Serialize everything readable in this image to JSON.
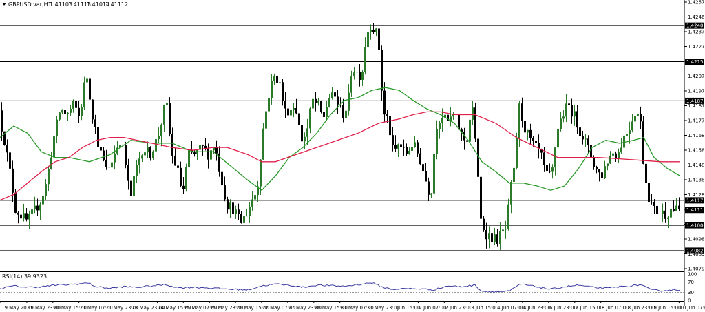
{
  "chart_data": {
    "type": "candlestick",
    "header": {
      "symbol_label": "GBPUSD.var,H1",
      "ohlc": [
        "1.41103",
        "1.41113",
        "1.41014",
        "1.41112"
      ]
    },
    "price_axis": {
      "min": 1.407,
      "max": 1.4257,
      "ticks": [
        "1.42570",
        "1.42465",
        "1.42370",
        "1.42270",
        "1.42170",
        "1.42075",
        "1.41975",
        "1.41875",
        "1.41775",
        "1.41680",
        "1.41580",
        "1.41480",
        "1.41380",
        "1.41280",
        "1.41185",
        "1.41085",
        "1.40985",
        "1.40890",
        "1.40790"
      ]
    },
    "levels": [
      {
        "value": 1.42405,
        "label": "1.42405"
      },
      {
        "value": 1.42152,
        "label": "1.42152"
      },
      {
        "value": 1.41877,
        "label": "1.41877"
      },
      {
        "value": 1.41179,
        "label": "1.41179"
      },
      {
        "value": 1.41004,
        "label": "1.41004"
      },
      {
        "value": 1.40826,
        "label": "1.40826"
      }
    ],
    "current_price": {
      "value": 1.41112,
      "label": "1.41112"
    },
    "time_axis": {
      "labels": [
        "19 May 2021",
        "19 May 23:00",
        "20 May 15:00",
        "21 May 07:00",
        "21 May 23:00",
        "23 May 23:00",
        "24 May 15:00",
        "25 May 07:00",
        "25 May 23:00",
        "26 May 15:00",
        "27 May 07:00",
        "27 May 23:00",
        "28 May 15:00",
        "31 May 07:00",
        "31 May 23:00",
        "1 Jun 15:00",
        "2 Jun 07:00",
        "2 Jun 23:00",
        "3 Jun 15:00",
        "4 Jun 07:00",
        "4 Jun 23:00",
        "6 Jun 23:00",
        "7 Jun 15:00",
        "8 Jun 07:00",
        "8 Jun 23:00",
        "9 Jun 15:00",
        "10 Jun 07:00"
      ]
    },
    "price_path": [
      [
        0,
        1.4181
      ],
      [
        10,
        1.4158
      ],
      [
        18,
        1.4135
      ],
      [
        25,
        1.4112
      ],
      [
        32,
        1.4108
      ],
      [
        42,
        1.4103
      ],
      [
        52,
        1.411
      ],
      [
        62,
        1.4118
      ],
      [
        70,
        1.413
      ],
      [
        80,
        1.416
      ],
      [
        90,
        1.4182
      ],
      [
        100,
        1.4178
      ],
      [
        110,
        1.4185
      ],
      [
        118,
        1.4176
      ],
      [
        128,
        1.4208
      ],
      [
        138,
        1.4175
      ],
      [
        148,
        1.4152
      ],
      [
        158,
        1.4138
      ],
      [
        168,
        1.415
      ],
      [
        178,
        1.4162
      ],
      [
        186,
        1.414
      ],
      [
        192,
        1.4118
      ],
      [
        200,
        1.414
      ],
      [
        210,
        1.4155
      ],
      [
        220,
        1.415
      ],
      [
        232,
        1.4162
      ],
      [
        244,
        1.4188
      ],
      [
        252,
        1.415
      ],
      [
        260,
        1.414
      ],
      [
        268,
        1.4122
      ],
      [
        276,
        1.415
      ],
      [
        286,
        1.415
      ],
      [
        296,
        1.4155
      ],
      [
        306,
        1.415
      ],
      [
        314,
        1.4158
      ],
      [
        322,
        1.4138
      ],
      [
        332,
        1.4115
      ],
      [
        342,
        1.4112
      ],
      [
        352,
        1.4102
      ],
      [
        360,
        1.4108
      ],
      [
        368,
        1.4118
      ],
      [
        376,
        1.4125
      ],
      [
        384,
        1.4165
      ],
      [
        392,
        1.419
      ],
      [
        400,
        1.4205
      ],
      [
        408,
        1.4202
      ],
      [
        416,
        1.418
      ],
      [
        424,
        1.4182
      ],
      [
        432,
        1.4185
      ],
      [
        440,
        1.416
      ],
      [
        448,
        1.4165
      ],
      [
        456,
        1.4188
      ],
      [
        464,
        1.4185
      ],
      [
        472,
        1.4175
      ],
      [
        480,
        1.419
      ],
      [
        490,
        1.419
      ],
      [
        500,
        1.4178
      ],
      [
        508,
        1.4185
      ],
      [
        514,
        1.4212
      ],
      [
        520,
        1.4208
      ],
      [
        528,
        1.4205
      ],
      [
        534,
        1.4232
      ],
      [
        540,
        1.4242
      ],
      [
        546,
        1.4238
      ],
      [
        552,
        1.4232
      ],
      [
        556,
        1.4202
      ],
      [
        560,
        1.4178
      ],
      [
        566,
        1.4175
      ],
      [
        574,
        1.415
      ],
      [
        582,
        1.4158
      ],
      [
        592,
        1.415
      ],
      [
        602,
        1.4158
      ],
      [
        612,
        1.4148
      ],
      [
        622,
        1.413
      ],
      [
        628,
        1.412
      ],
      [
        636,
        1.417
      ],
      [
        644,
        1.4178
      ],
      [
        652,
        1.4172
      ],
      [
        662,
        1.4178
      ],
      [
        672,
        1.4165
      ],
      [
        680,
        1.4158
      ],
      [
        688,
        1.4185
      ],
      [
        694,
        1.4158
      ],
      [
        700,
        1.4105
      ],
      [
        708,
        1.4095
      ],
      [
        716,
        1.4092
      ],
      [
        724,
        1.409
      ],
      [
        732,
        1.4095
      ],
      [
        738,
        1.4098
      ],
      [
        744,
        1.4125
      ],
      [
        750,
        1.414
      ],
      [
        756,
        1.4185
      ],
      [
        764,
        1.417
      ],
      [
        772,
        1.416
      ],
      [
        780,
        1.4155
      ],
      [
        788,
        1.415
      ],
      [
        796,
        1.4135
      ],
      [
        804,
        1.4135
      ],
      [
        812,
        1.4168
      ],
      [
        820,
        1.4178
      ],
      [
        828,
        1.4185
      ],
      [
        836,
        1.4178
      ],
      [
        844,
        1.4168
      ],
      [
        852,
        1.416
      ],
      [
        860,
        1.415
      ],
      [
        868,
        1.414
      ],
      [
        876,
        1.4135
      ],
      [
        884,
        1.4145
      ],
      [
        892,
        1.4152
      ],
      [
        900,
        1.415
      ],
      [
        908,
        1.4162
      ],
      [
        916,
        1.4168
      ],
      [
        924,
        1.418
      ],
      [
        932,
        1.4178
      ],
      [
        938,
        1.414
      ],
      [
        946,
        1.4118
      ],
      [
        954,
        1.411
      ],
      [
        962,
        1.411
      ],
      [
        970,
        1.4108
      ],
      [
        978,
        1.4112
      ],
      [
        985,
        1.4111
      ]
    ],
    "moving_averages": [
      {
        "color": "#2a9a2a",
        "points": [
          [
            0,
            1.4162
          ],
          [
            20,
            1.417
          ],
          [
            40,
            1.4165
          ],
          [
            60,
            1.4152
          ],
          [
            80,
            1.4148
          ],
          [
            100,
            1.4148
          ],
          [
            130,
            1.4145
          ],
          [
            160,
            1.415
          ],
          [
            190,
            1.416
          ],
          [
            220,
            1.4158
          ],
          [
            250,
            1.4158
          ],
          [
            280,
            1.4152
          ],
          [
            310,
            1.4152
          ],
          [
            340,
            1.414
          ],
          [
            360,
            1.4132
          ],
          [
            380,
            1.4125
          ],
          [
            400,
            1.4135
          ],
          [
            420,
            1.4148
          ],
          [
            440,
            1.4155
          ],
          [
            460,
            1.4165
          ],
          [
            480,
            1.4178
          ],
          [
            500,
            1.4188
          ],
          [
            520,
            1.419
          ],
          [
            540,
            1.4195
          ],
          [
            560,
            1.4197
          ],
          [
            580,
            1.4195
          ],
          [
            600,
            1.4188
          ],
          [
            620,
            1.4182
          ],
          [
            640,
            1.4178
          ],
          [
            660,
            1.4172
          ],
          [
            680,
            1.416
          ],
          [
            700,
            1.4145
          ],
          [
            720,
            1.4138
          ],
          [
            740,
            1.413
          ],
          [
            760,
            1.413
          ],
          [
            780,
            1.4128
          ],
          [
            800,
            1.4125
          ],
          [
            820,
            1.4128
          ],
          [
            840,
            1.414
          ],
          [
            860,
            1.4155
          ],
          [
            880,
            1.416
          ],
          [
            900,
            1.4158
          ],
          [
            920,
            1.416
          ],
          [
            935,
            1.4162
          ],
          [
            950,
            1.4148
          ],
          [
            970,
            1.414
          ],
          [
            988,
            1.4135
          ]
        ]
      },
      {
        "color": "#e0204a",
        "points": [
          [
            0,
            1.4118
          ],
          [
            20,
            1.4122
          ],
          [
            40,
            1.413
          ],
          [
            60,
            1.4138
          ],
          [
            80,
            1.4145
          ],
          [
            100,
            1.4148
          ],
          [
            120,
            1.4155
          ],
          [
            140,
            1.416
          ],
          [
            160,
            1.4162
          ],
          [
            180,
            1.4162
          ],
          [
            200,
            1.416
          ],
          [
            220,
            1.4158
          ],
          [
            250,
            1.4155
          ],
          [
            280,
            1.4153
          ],
          [
            310,
            1.4155
          ],
          [
            330,
            1.4155
          ],
          [
            360,
            1.415
          ],
          [
            380,
            1.4145
          ],
          [
            400,
            1.4145
          ],
          [
            430,
            1.415
          ],
          [
            460,
            1.4155
          ],
          [
            490,
            1.416
          ],
          [
            520,
            1.4165
          ],
          [
            550,
            1.4172
          ],
          [
            580,
            1.4175
          ],
          [
            600,
            1.4178
          ],
          [
            620,
            1.418
          ],
          [
            640,
            1.418
          ],
          [
            660,
            1.4178
          ],
          [
            690,
            1.4178
          ],
          [
            720,
            1.4172
          ],
          [
            750,
            1.4162
          ],
          [
            780,
            1.4155
          ],
          [
            810,
            1.4148
          ],
          [
            840,
            1.4148
          ],
          [
            870,
            1.4148
          ],
          [
            900,
            1.4147
          ],
          [
            930,
            1.4146
          ],
          [
            960,
            1.4145
          ],
          [
            988,
            1.4145
          ]
        ]
      }
    ],
    "rsi": {
      "label": "RSI(14) 39.9323",
      "scale": [
        "100",
        "70",
        "30",
        "0"
      ],
      "levels": [
        70,
        30
      ],
      "color": "#3a3aa0",
      "points": [
        [
          0,
          45
        ],
        [
          20,
          55
        ],
        [
          40,
          50
        ],
        [
          60,
          52
        ],
        [
          80,
          58
        ],
        [
          100,
          60
        ],
        [
          110,
          62
        ],
        [
          128,
          66
        ],
        [
          140,
          52
        ],
        [
          160,
          46
        ],
        [
          180,
          52
        ],
        [
          200,
          50
        ],
        [
          220,
          55
        ],
        [
          240,
          60
        ],
        [
          260,
          48
        ],
        [
          280,
          50
        ],
        [
          300,
          48
        ],
        [
          320,
          45
        ],
        [
          340,
          42
        ],
        [
          360,
          40
        ],
        [
          380,
          55
        ],
        [
          400,
          62
        ],
        [
          420,
          58
        ],
        [
          440,
          50
        ],
        [
          460,
          58
        ],
        [
          480,
          56
        ],
        [
          500,
          54
        ],
        [
          520,
          60
        ],
        [
          540,
          67
        ],
        [
          556,
          50
        ],
        [
          570,
          42
        ],
        [
          590,
          45
        ],
        [
          610,
          44
        ],
        [
          630,
          40
        ],
        [
          650,
          55
        ],
        [
          670,
          52
        ],
        [
          690,
          58
        ],
        [
          700,
          35
        ],
        [
          720,
          33
        ],
        [
          740,
          35
        ],
        [
          756,
          62
        ],
        [
          780,
          52
        ],
        [
          800,
          42
        ],
        [
          820,
          52
        ],
        [
          840,
          58
        ],
        [
          860,
          50
        ],
        [
          880,
          46
        ],
        [
          900,
          52
        ],
        [
          920,
          56
        ],
        [
          932,
          60
        ],
        [
          945,
          40
        ],
        [
          960,
          37
        ],
        [
          980,
          40
        ],
        [
          988,
          39.9
        ]
      ]
    }
  }
}
